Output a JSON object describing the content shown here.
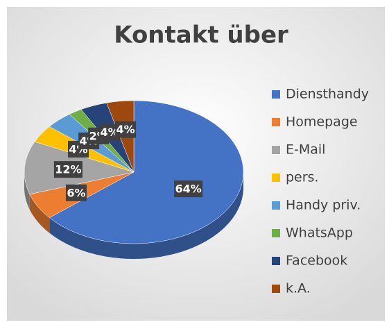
{
  "chart_data": {
    "type": "pie",
    "title": "Kontakt über",
    "categories": [
      "Diensthandy",
      "Homepage",
      "E-Mail",
      "pers.",
      "Handy priv.",
      "WhatsApp",
      "Facebook",
      "k.A."
    ],
    "values": [
      64,
      6,
      12,
      4,
      4,
      2,
      4,
      4
    ],
    "value_labels": [
      "64%",
      "6%",
      "12%",
      "4%",
      "4%",
      "2%",
      "4%",
      "4%"
    ],
    "colors": [
      "#4472c4",
      "#ed7d31",
      "#a5a5a5",
      "#ffc000",
      "#5b9bd5",
      "#70ad47",
      "#264478",
      "#9e480e"
    ],
    "legend": "right"
  }
}
